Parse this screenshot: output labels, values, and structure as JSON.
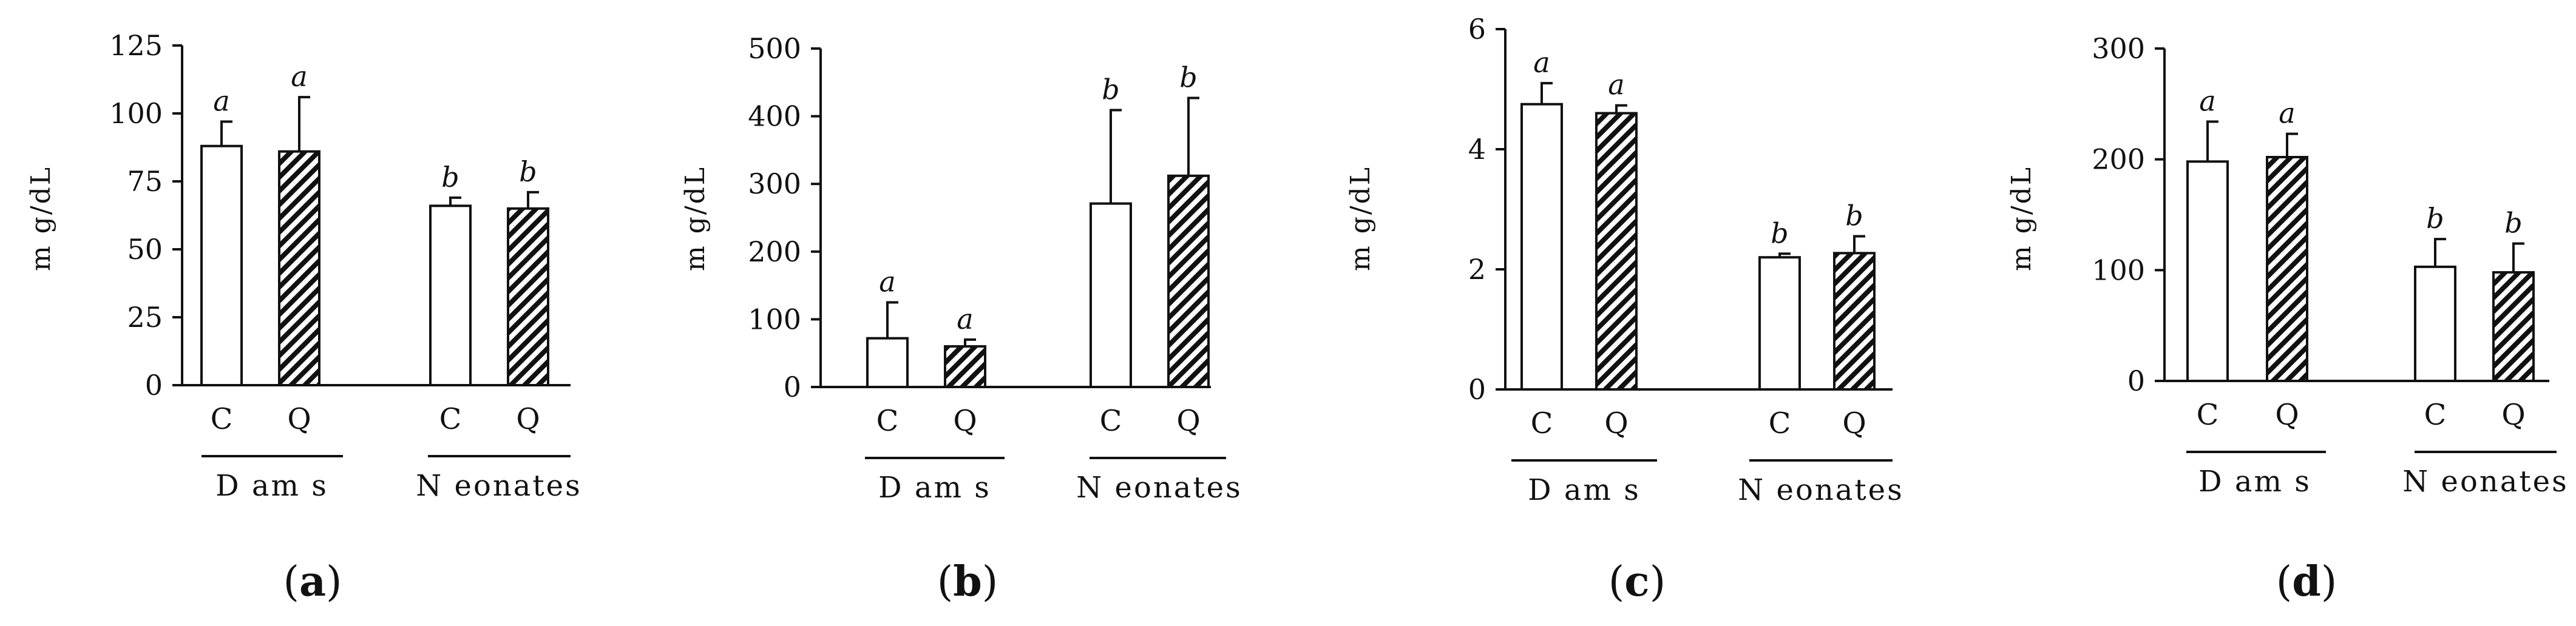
{
  "chart_data": [
    {
      "type": "bar",
      "panel_label": "a",
      "ylabel": "m g/dL",
      "ylim": [
        0,
        125
      ],
      "yticks": [
        "0",
        "25",
        "50",
        "75",
        "100",
        "125"
      ],
      "groups": [
        {
          "name": "D am s",
          "categories": [
            "C",
            "Q"
          ]
        },
        {
          "name": "N eonates",
          "categories": [
            "C",
            "Q"
          ]
        }
      ],
      "series": [
        {
          "name": "C",
          "pattern": "open",
          "values": [
            88,
            66
          ],
          "errors": [
            9,
            3
          ],
          "letters": [
            "a",
            "b"
          ]
        },
        {
          "name": "Q",
          "pattern": "hatched",
          "values": [
            86,
            65
          ],
          "errors": [
            20,
            6
          ],
          "letters": [
            "a",
            "b"
          ]
        }
      ]
    },
    {
      "type": "bar",
      "panel_label": "b",
      "ylabel": "m g/dL",
      "ylim": [
        0,
        500
      ],
      "yticks": [
        "0",
        "100",
        "200",
        "300",
        "400",
        "500"
      ],
      "groups": [
        {
          "name": "D am s",
          "categories": [
            "C",
            "Q"
          ]
        },
        {
          "name": "N eonates",
          "categories": [
            "C",
            "Q"
          ]
        }
      ],
      "series": [
        {
          "name": "C",
          "pattern": "open",
          "values": [
            72,
            271
          ],
          "errors": [
            53,
            138
          ],
          "letters": [
            "a",
            "b"
          ]
        },
        {
          "name": "Q",
          "pattern": "hatched",
          "values": [
            60,
            312
          ],
          "errors": [
            10,
            115
          ],
          "letters": [
            "a",
            "b"
          ]
        }
      ]
    },
    {
      "type": "bar",
      "panel_label": "c",
      "ylabel": "m g/dL",
      "ylim": [
        0,
        6
      ],
      "yticks": [
        "0",
        "2",
        "4",
        "6"
      ],
      "groups": [
        {
          "name": "D am s",
          "categories": [
            "C",
            "Q"
          ]
        },
        {
          "name": "N eonates",
          "categories": [
            "C",
            "Q"
          ]
        }
      ],
      "series": [
        {
          "name": "C",
          "pattern": "open",
          "values": [
            4.75,
            2.2
          ],
          "errors": [
            0.35,
            0.06
          ],
          "letters": [
            "a",
            "b"
          ]
        },
        {
          "name": "Q",
          "pattern": "hatched",
          "values": [
            4.6,
            2.27
          ],
          "errors": [
            0.13,
            0.28
          ],
          "letters": [
            "a",
            "b"
          ]
        }
      ]
    },
    {
      "type": "bar",
      "panel_label": "d",
      "ylabel": "m g/dL",
      "ylim": [
        0,
        300
      ],
      "yticks": [
        "0",
        "100",
        "200",
        "300"
      ],
      "groups": [
        {
          "name": "D am s",
          "categories": [
            "C",
            "Q"
          ]
        },
        {
          "name": "N eonates",
          "categories": [
            "C",
            "Q"
          ]
        }
      ],
      "series": [
        {
          "name": "C",
          "pattern": "open",
          "values": [
            198,
            103
          ],
          "errors": [
            36,
            25
          ],
          "letters": [
            "a",
            "b"
          ]
        },
        {
          "name": "Q",
          "pattern": "hatched",
          "values": [
            202,
            98
          ],
          "errors": [
            21,
            26
          ],
          "letters": [
            "a",
            "b"
          ]
        }
      ]
    }
  ]
}
